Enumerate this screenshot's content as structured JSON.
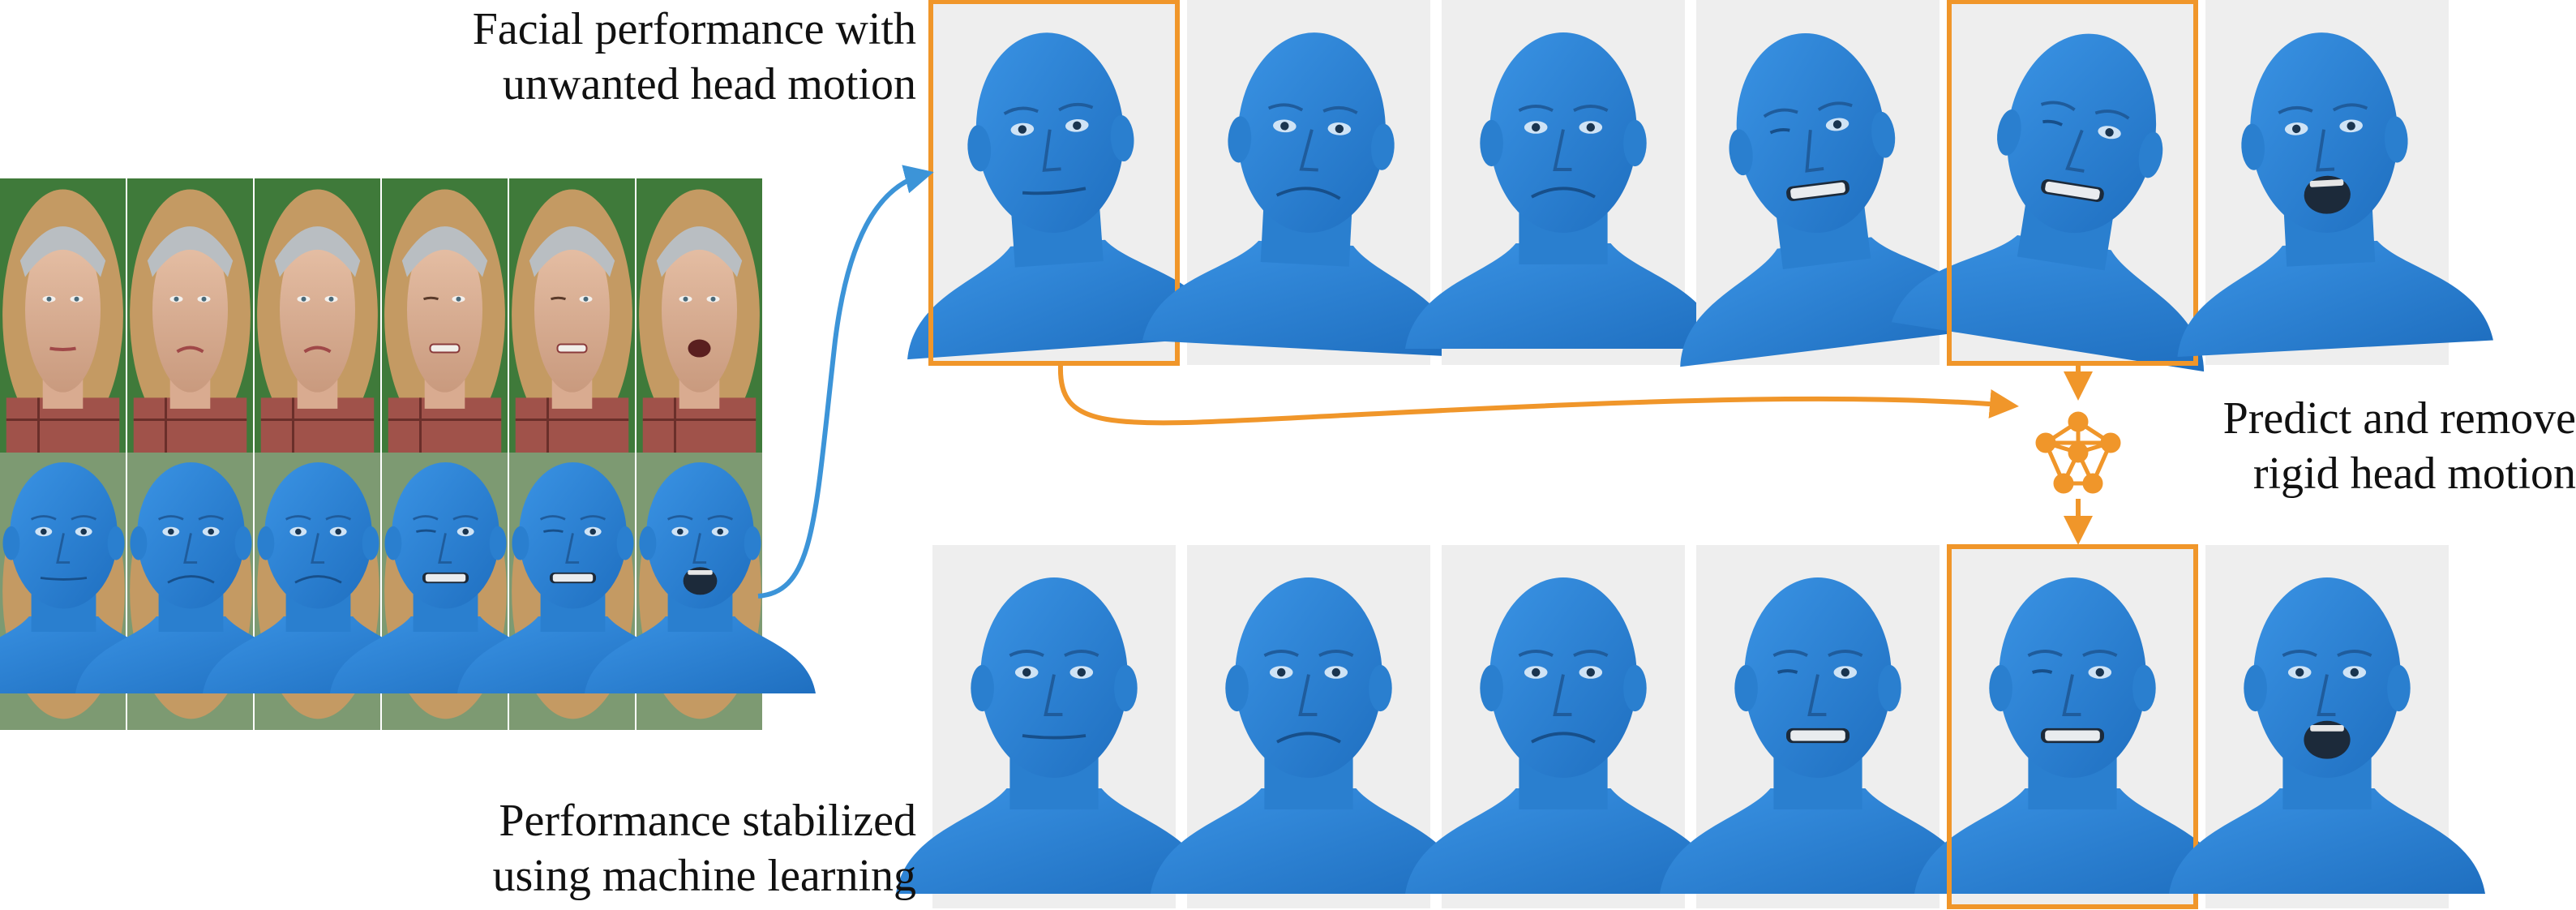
{
  "captions": {
    "top": [
      "Facial performance with",
      "unwanted head motion"
    ],
    "right": [
      "Predict and remove",
      "rigid head motion"
    ],
    "bottom": [
      "Performance stabilized",
      "using machine learning"
    ]
  },
  "colors": {
    "mesh_blue": "#2f86d9",
    "highlight_orange": "#f0962a",
    "input_arrow_blue": "#3c94d8",
    "panel_bg": "#eeeeee",
    "greenscreen": "#3f7a3a"
  },
  "icons": [
    "neural-network-icon"
  ],
  "rows": {
    "video_frames": 6,
    "mesh_overlay_frames": 6,
    "unstabilized_meshes": 6,
    "stabilized_meshes": 6
  },
  "expressions": [
    "neutral",
    "frown",
    "grimace",
    "wink-teeth",
    "wink-teeth",
    "scream"
  ],
  "highlighted": {
    "unstabilized": [
      0,
      4
    ],
    "stabilized": [
      4
    ]
  }
}
